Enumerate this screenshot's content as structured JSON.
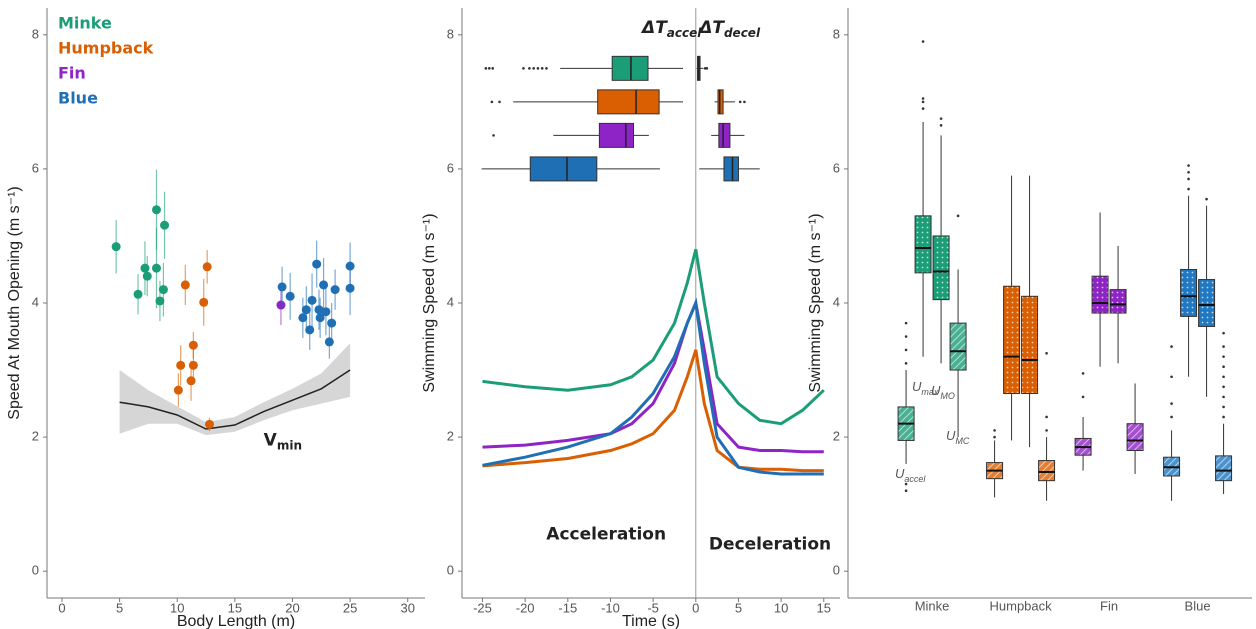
{
  "chart_data": [
    {
      "type": "scatter",
      "xlabel": "Body Length (m)",
      "ylabel": "Speed At Mouth Opening (m s⁻¹)",
      "xlim": [
        -1.3,
        31.5
      ],
      "ylim": [
        -0.4,
        8.4
      ],
      "xticks": [
        0,
        5,
        10,
        15,
        20,
        25,
        30
      ],
      "yticks": [
        0,
        2,
        4,
        6,
        8
      ],
      "series": [
        {
          "name": "Minke",
          "color": "#1b9e77",
          "x": [
            4.7,
            6.6,
            7.2,
            7.4,
            8.2,
            8.2,
            8.5,
            8.9,
            8.8
          ],
          "values": [
            4.84,
            4.13,
            4.52,
            4.4,
            4.52,
            5.39,
            4.03,
            5.16,
            4.2
          ],
          "errors": [
            0.4,
            0.3,
            0.4,
            0.3,
            0.6,
            0.6,
            0.3,
            0.5,
            0.4
          ]
        },
        {
          "name": "Humpback",
          "color": "#d95f02",
          "x": [
            10.1,
            10.3,
            10.7,
            11.2,
            11.4,
            11.4,
            12.3,
            12.6,
            12.8
          ],
          "values": [
            2.7,
            3.07,
            4.27,
            2.84,
            3.07,
            3.37,
            4.01,
            4.54,
            2.19
          ],
          "errors": [
            0.25,
            0.3,
            0.3,
            0.3,
            0.25,
            0.2,
            0.35,
            0.25,
            0.1
          ]
        },
        {
          "name": "Fin",
          "color": "#8e24c6",
          "x": [
            19.0
          ],
          "values": [
            3.97
          ],
          "errors": [
            0.3
          ]
        },
        {
          "name": "Blue",
          "color": "#1f6fb5",
          "x": [
            19.1,
            19.8,
            20.9,
            21.2,
            21.5,
            21.7,
            22.1,
            22.3,
            22.4,
            22.7,
            22.9,
            23.2,
            23.4,
            23.7,
            25.0,
            25.0
          ],
          "values": [
            4.24,
            4.1,
            3.78,
            3.9,
            3.6,
            4.04,
            4.58,
            3.9,
            3.78,
            4.27,
            3.87,
            3.42,
            3.7,
            4.2,
            4.55,
            4.22
          ],
          "errors": [
            0.3,
            0.35,
            0.3,
            0.35,
            0.3,
            0.4,
            0.35,
            0.3,
            0.3,
            0.4,
            0.35,
            0.25,
            0.3,
            0.3,
            0.35,
            0.4
          ]
        }
      ],
      "fit": {
        "label": "V",
        "label_sub": "min",
        "color": "#222222",
        "x": [
          5,
          7.5,
          10,
          12.5,
          15,
          17.5,
          20,
          22.5,
          25
        ],
        "values": [
          2.52,
          2.45,
          2.33,
          2.12,
          2.18,
          2.38,
          2.55,
          2.72,
          3.0
        ],
        "lower": [
          2.05,
          2.2,
          2.2,
          2.03,
          2.08,
          2.25,
          2.4,
          2.5,
          2.6
        ],
        "upper": [
          3.0,
          2.7,
          2.46,
          2.22,
          2.3,
          2.52,
          2.72,
          2.95,
          3.4
        ]
      }
    },
    {
      "type": "line",
      "xlabel": "Time (s)",
      "ylabel": "Swimming Speed (m s⁻¹)",
      "xlim": [
        -27.4,
        16.9
      ],
      "ylim": [
        -0.4,
        8.4
      ],
      "xticks": [
        -25,
        -20,
        -15,
        -10,
        -5,
        0,
        5,
        10,
        15
      ],
      "yticks": [
        0,
        2,
        4,
        6,
        8
      ],
      "x": [
        -25,
        -20,
        -15,
        -10,
        -7.5,
        -5,
        -2.5,
        -1,
        0,
        1,
        2.5,
        5,
        7.5,
        10,
        12.5,
        15
      ],
      "series": [
        {
          "color": "#1b9e77",
          "values": [
            2.83,
            2.75,
            2.7,
            2.78,
            2.9,
            3.15,
            3.7,
            4.3,
            4.8,
            4.0,
            2.9,
            2.5,
            2.25,
            2.2,
            2.4,
            2.7
          ]
        },
        {
          "color": "#d95f02",
          "values": [
            1.57,
            1.62,
            1.68,
            1.8,
            1.9,
            2.05,
            2.4,
            2.9,
            3.3,
            2.5,
            1.8,
            1.55,
            1.52,
            1.52,
            1.5,
            1.5
          ]
        },
        {
          "color": "#8e24c6",
          "values": [
            1.85,
            1.88,
            1.95,
            2.05,
            2.2,
            2.5,
            3.1,
            3.7,
            4.0,
            3.3,
            2.2,
            1.85,
            1.8,
            1.8,
            1.78,
            1.78
          ]
        },
        {
          "color": "#1f6fb5",
          "values": [
            1.58,
            1.7,
            1.85,
            2.05,
            2.3,
            2.65,
            3.2,
            3.7,
            4.0,
            3.1,
            2.0,
            1.55,
            1.48,
            1.45,
            1.45,
            1.45
          ]
        }
      ],
      "box_groups": [
        {
          "label": "ΔT",
          "label_sub": "accel",
          "boxes": [
            {
              "y": 7.5,
              "low": -15.9,
              "q1": -9.8,
              "median": -7.6,
              "q3": -5.6,
              "high": -1.5,
              "outliers": [
                -24.6,
                -24.2,
                -23.8,
                -20.2,
                -19.5,
                -19.0,
                -18.5,
                -18.0,
                -17.5
              ]
            },
            {
              "y": 7.0,
              "low": -21.4,
              "q1": -11.5,
              "median": -7.0,
              "q3": -4.3,
              "high": -1.5,
              "outliers": [
                -23.9,
                -23.0
              ]
            },
            {
              "y": 6.5,
              "low": -16.7,
              "q1": -11.3,
              "median": -8.2,
              "q3": -7.3,
              "high": -5.5,
              "outliers": [
                -23.7
              ]
            },
            {
              "y": 6.0,
              "low": -25.1,
              "q1": -19.4,
              "median": -15.1,
              "q3": -11.6,
              "high": -4.2,
              "outliers": []
            }
          ]
        },
        {
          "label": "ΔT",
          "label_sub": "decel",
          "boxes": [
            {
              "y": 7.5,
              "low": 0.1,
              "q1": 0.2,
              "median": 0.35,
              "q3": 0.5,
              "high": 0.9,
              "outliers": [
                1.1,
                1.3
              ]
            },
            {
              "y": 7.0,
              "low": 2.2,
              "q1": 2.6,
              "median": 2.8,
              "q3": 3.2,
              "high": 4.6,
              "outliers": [
                5.2,
                5.7
              ]
            },
            {
              "y": 6.5,
              "low": 1.8,
              "q1": 2.7,
              "median": 3.2,
              "q3": 4.0,
              "high": 5.7,
              "outliers": []
            },
            {
              "y": 6.0,
              "low": 0.4,
              "q1": 3.3,
              "median": 4.3,
              "q3": 5.0,
              "high": 7.5,
              "outliers": []
            }
          ]
        }
      ],
      "annotations": [
        {
          "text": "Acceleration",
          "x": -10.5,
          "y": 0.55
        },
        {
          "text": "Deceleration",
          "x": 8.7,
          "y": 0.4
        }
      ]
    },
    {
      "type": "box",
      "ylabel": "Swimming Speed (m s⁻¹)",
      "ylim": [
        -0.4,
        8.4
      ],
      "yticks": [
        0,
        2,
        4,
        6,
        8
      ],
      "categories": [
        "Minke",
        "Humpback",
        "Fin",
        "Blue"
      ],
      "colors": [
        "#1b9e77",
        "#d95f02",
        "#8e24c6",
        "#1f78c1"
      ],
      "series": [
        {
          "name": "U",
          "subscript": "accel",
          "boxes": [
            {
              "low": 1.6,
              "q1": 1.95,
              "median": 2.2,
              "q3": 2.45,
              "high": 3.0,
              "outliers": [
                1.2,
                1.3,
                3.1,
                3.3,
                3.5,
                3.7
              ]
            },
            {
              "low": 1.1,
              "q1": 1.38,
              "median": 1.5,
              "q3": 1.62,
              "high": 1.95,
              "outliers": [
                2.0,
                2.1
              ]
            },
            {
              "low": 1.5,
              "q1": 1.73,
              "median": 1.85,
              "q3": 1.98,
              "high": 2.3,
              "outliers": [
                2.6,
                2.95
              ]
            },
            {
              "low": 1.05,
              "q1": 1.42,
              "median": 1.55,
              "q3": 1.7,
              "high": 2.1,
              "outliers": [
                2.3,
                2.5,
                2.9,
                3.35
              ]
            }
          ]
        },
        {
          "name": "U",
          "subscript": "max",
          "boxes": [
            {
              "low": 3.2,
              "q1": 4.45,
              "median": 4.82,
              "q3": 5.3,
              "high": 6.7,
              "outliers": [
                6.9,
                7.0,
                7.05,
                7.9
              ]
            },
            {
              "low": 1.95,
              "q1": 2.65,
              "median": 3.2,
              "q3": 4.25,
              "high": 5.9,
              "outliers": []
            },
            {
              "low": 3.05,
              "q1": 3.85,
              "median": 4.0,
              "q3": 4.4,
              "high": 5.35,
              "outliers": []
            },
            {
              "low": 2.9,
              "q1": 3.8,
              "median": 4.1,
              "q3": 4.5,
              "high": 5.6,
              "outliers": [
                5.7,
                5.85,
                5.95,
                6.05
              ]
            }
          ]
        },
        {
          "name": "U",
          "subscript": "MO",
          "boxes": [
            {
              "low": 3.1,
              "q1": 4.05,
              "median": 4.47,
              "q3": 5.0,
              "high": 6.5,
              "outliers": [
                6.65,
                6.75
              ]
            },
            {
              "low": 1.85,
              "q1": 2.65,
              "median": 3.15,
              "q3": 4.1,
              "high": 5.9,
              "outliers": []
            },
            {
              "low": 3.1,
              "q1": 3.85,
              "median": 3.98,
              "q3": 4.2,
              "high": 4.85,
              "outliers": []
            },
            {
              "low": 2.6,
              "q1": 3.65,
              "median": 3.97,
              "q3": 4.35,
              "high": 5.45,
              "outliers": [
                5.55
              ]
            }
          ]
        },
        {
          "name": "U",
          "subscript": "MC",
          "boxes": [
            {
              "low": 2.0,
              "q1": 3.0,
              "median": 3.28,
              "q3": 3.7,
              "high": 4.5,
              "outliers": [
                5.3
              ]
            },
            {
              "low": 1.05,
              "q1": 1.35,
              "median": 1.48,
              "q3": 1.65,
              "high": 2.0,
              "outliers": [
                2.1,
                2.3,
                3.25
              ]
            },
            {
              "low": 1.45,
              "q1": 1.8,
              "median": 1.95,
              "q3": 2.2,
              "high": 2.8,
              "outliers": []
            },
            {
              "low": 1.15,
              "q1": 1.35,
              "median": 1.5,
              "q3": 1.72,
              "high": 2.2,
              "outliers": [
                2.3,
                2.45,
                2.6,
                2.75,
                2.9,
                3.05,
                3.2,
                3.35,
                3.55
              ]
            }
          ]
        }
      ]
    }
  ]
}
